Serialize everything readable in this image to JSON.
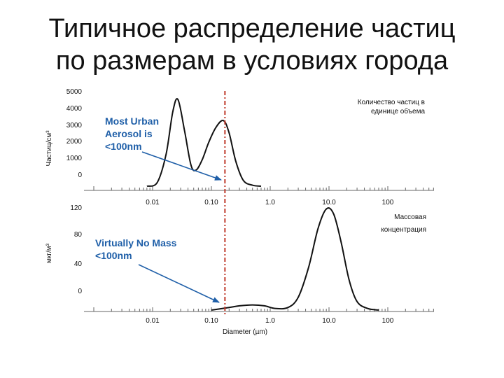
{
  "title": {
    "line1": "Типичное распределение частиц",
    "line2": "по размерам в условиях города"
  },
  "colors": {
    "curve": "#111111",
    "marker": "#c0392b",
    "annotation": "#1f5fa8"
  },
  "marker_x": 0.17,
  "chart_data": [
    {
      "type": "line",
      "panel": "top",
      "ylabel": "Частиц/см³",
      "ylim": [
        0,
        5000
      ],
      "yticks": [
        "5000",
        "4000",
        "3000",
        "2000",
        "1000",
        "0"
      ],
      "xscale": "log",
      "xlim": [
        0.001,
        200
      ],
      "xticks": [
        {
          "value": 0.01,
          "label": "0.01"
        },
        {
          "value": 0.1,
          "label": "0.10"
        },
        {
          "value": 1,
          "label": "1.0"
        },
        {
          "value": 10,
          "label": "10.0"
        },
        {
          "value": 100,
          "label": "100"
        }
      ],
      "legend": {
        "line1": "Количество частиц в",
        "line2": "единице объема"
      },
      "annotation": {
        "line1": "Most Urban",
        "line2": "Aerosol is",
        "line3": "<100nm"
      },
      "x": [
        0.008,
        0.012,
        0.017,
        0.022,
        0.027,
        0.035,
        0.045,
        0.055,
        0.07,
        0.09,
        0.12,
        0.16,
        0.2,
        0.26,
        0.35,
        0.5,
        0.7
      ],
      "y": [
        0,
        200,
        1700,
        3900,
        4550,
        2900,
        1100,
        850,
        1400,
        2300,
        3100,
        3450,
        2800,
        1300,
        300,
        50,
        0
      ]
    },
    {
      "type": "line",
      "panel": "bottom",
      "ylabel": "мкг/м³",
      "ylim": [
        0,
        120
      ],
      "yticks": [
        "120",
        "80",
        "40",
        "0"
      ],
      "xscale": "log",
      "xlim": [
        0.001,
        200
      ],
      "xticks": [
        {
          "value": 0.01,
          "label": "0.01"
        },
        {
          "value": 0.1,
          "label": "0.10"
        },
        {
          "value": 1,
          "label": "1.0"
        },
        {
          "value": 10,
          "label": "10.0"
        },
        {
          "value": 100,
          "label": "100"
        }
      ],
      "xlabel": "Diameter (µm)",
      "legend": {
        "line1": "Массовая",
        "line2": "концентрация"
      },
      "annotation": {
        "line1": "Virtually No Mass",
        "line2": "<100nm"
      },
      "x": [
        0.1,
        0.2,
        0.3,
        0.5,
        0.8,
        1.2,
        2,
        3,
        4.5,
        6.5,
        9,
        12,
        16,
        22,
        30,
        45,
        70
      ],
      "y": [
        0,
        3,
        5,
        6,
        5,
        2,
        3,
        15,
        50,
        95,
        118,
        112,
        80,
        35,
        10,
        2,
        0
      ]
    }
  ]
}
